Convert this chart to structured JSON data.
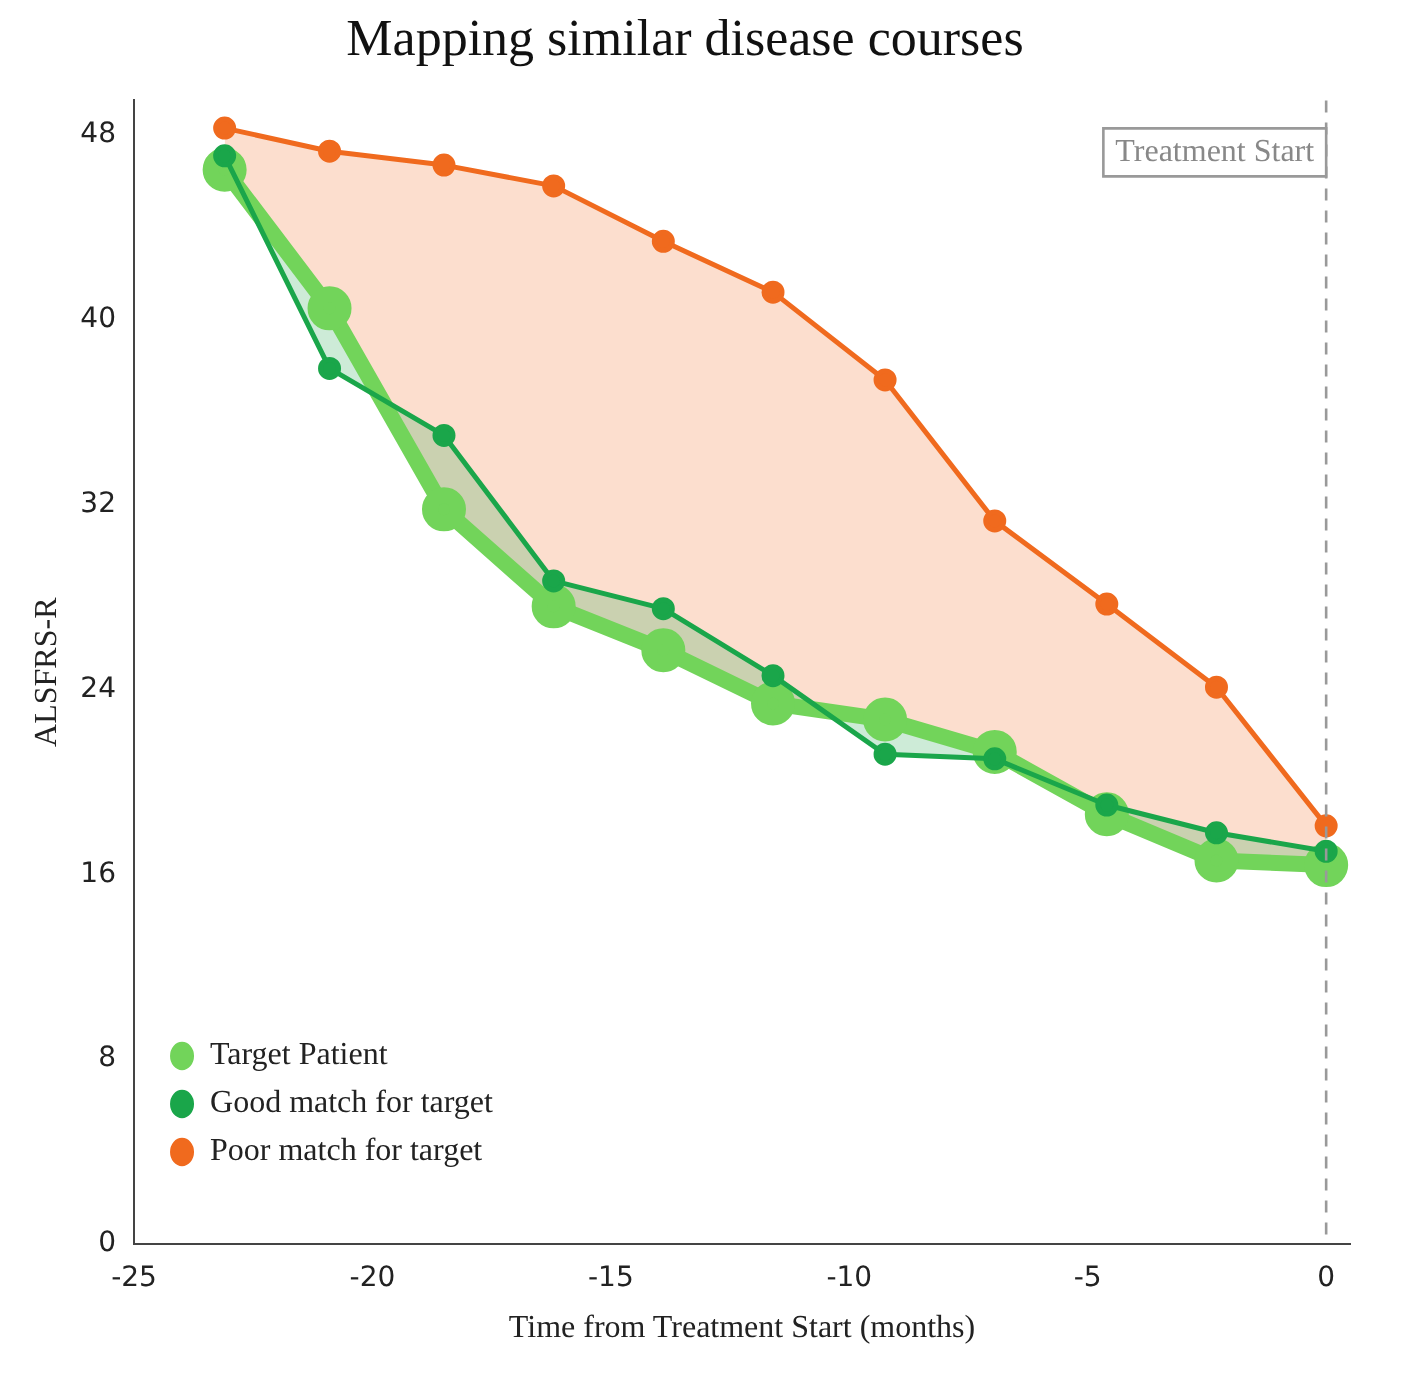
{
  "chart_data": {
    "type": "line",
    "title": "Mapping similar disease courses",
    "xlabel": "Time from Treatment Start (months)",
    "ylabel": "ALSFRS-R",
    "x": [
      -23.1,
      -20.9,
      -18.5,
      -16.2,
      -13.9,
      -11.6,
      -9.25,
      -6.95,
      -4.6,
      -2.3,
      0
    ],
    "series": [
      {
        "name": "Target Patient",
        "color": "#72d45a",
        "values": [
          46.5,
          40.5,
          31.8,
          27.6,
          25.7,
          23.4,
          22.7,
          21.3,
          18.6,
          16.6,
          16.4
        ]
      },
      {
        "name": "Good match for target",
        "color": "#1aa64a",
        "values": [
          47.1,
          37.9,
          35.0,
          28.7,
          27.5,
          24.6,
          21.2,
          21.0,
          19.0,
          17.8,
          17.0
        ],
        "lower": [
          46.5,
          40.5,
          31.8,
          27.6,
          25.7,
          23.4,
          22.7,
          21.3,
          18.6,
          16.6,
          16.4
        ],
        "upper": [
          47.1,
          37.9,
          35.0,
          28.7,
          27.5,
          24.6,
          21.2,
          21.0,
          19.0,
          17.8,
          17.0
        ]
      },
      {
        "name": "Poor match for target",
        "color": "#f06a1e",
        "values": [
          48.3,
          47.3,
          46.7,
          45.8,
          43.4,
          41.2,
          37.4,
          31.3,
          27.7,
          24.1,
          18.1
        ],
        "lower": [
          46.5,
          40.5,
          31.8,
          27.6,
          25.7,
          23.4,
          22.7,
          21.3,
          18.6,
          16.6,
          16.4
        ],
        "upper": [
          48.3,
          47.3,
          46.7,
          45.8,
          43.4,
          41.2,
          37.4,
          31.3,
          27.7,
          24.1,
          18.1
        ]
      }
    ],
    "xlim": [
      -25,
      0.5
    ],
    "xticks": [
      -25,
      -20,
      -15,
      -10,
      -5,
      0
    ],
    "ylim": [
      0,
      49.5
    ],
    "yticks": [
      0,
      8,
      16,
      24,
      32,
      40,
      48
    ],
    "ref_lines": [
      {
        "axis": "x",
        "value": 0,
        "label": "Treatment Start",
        "color": "#999999",
        "line_style": "dashed"
      }
    ],
    "grid": false,
    "legend": "bottom left",
    "marker": "circle",
    "line_style": "solid"
  }
}
